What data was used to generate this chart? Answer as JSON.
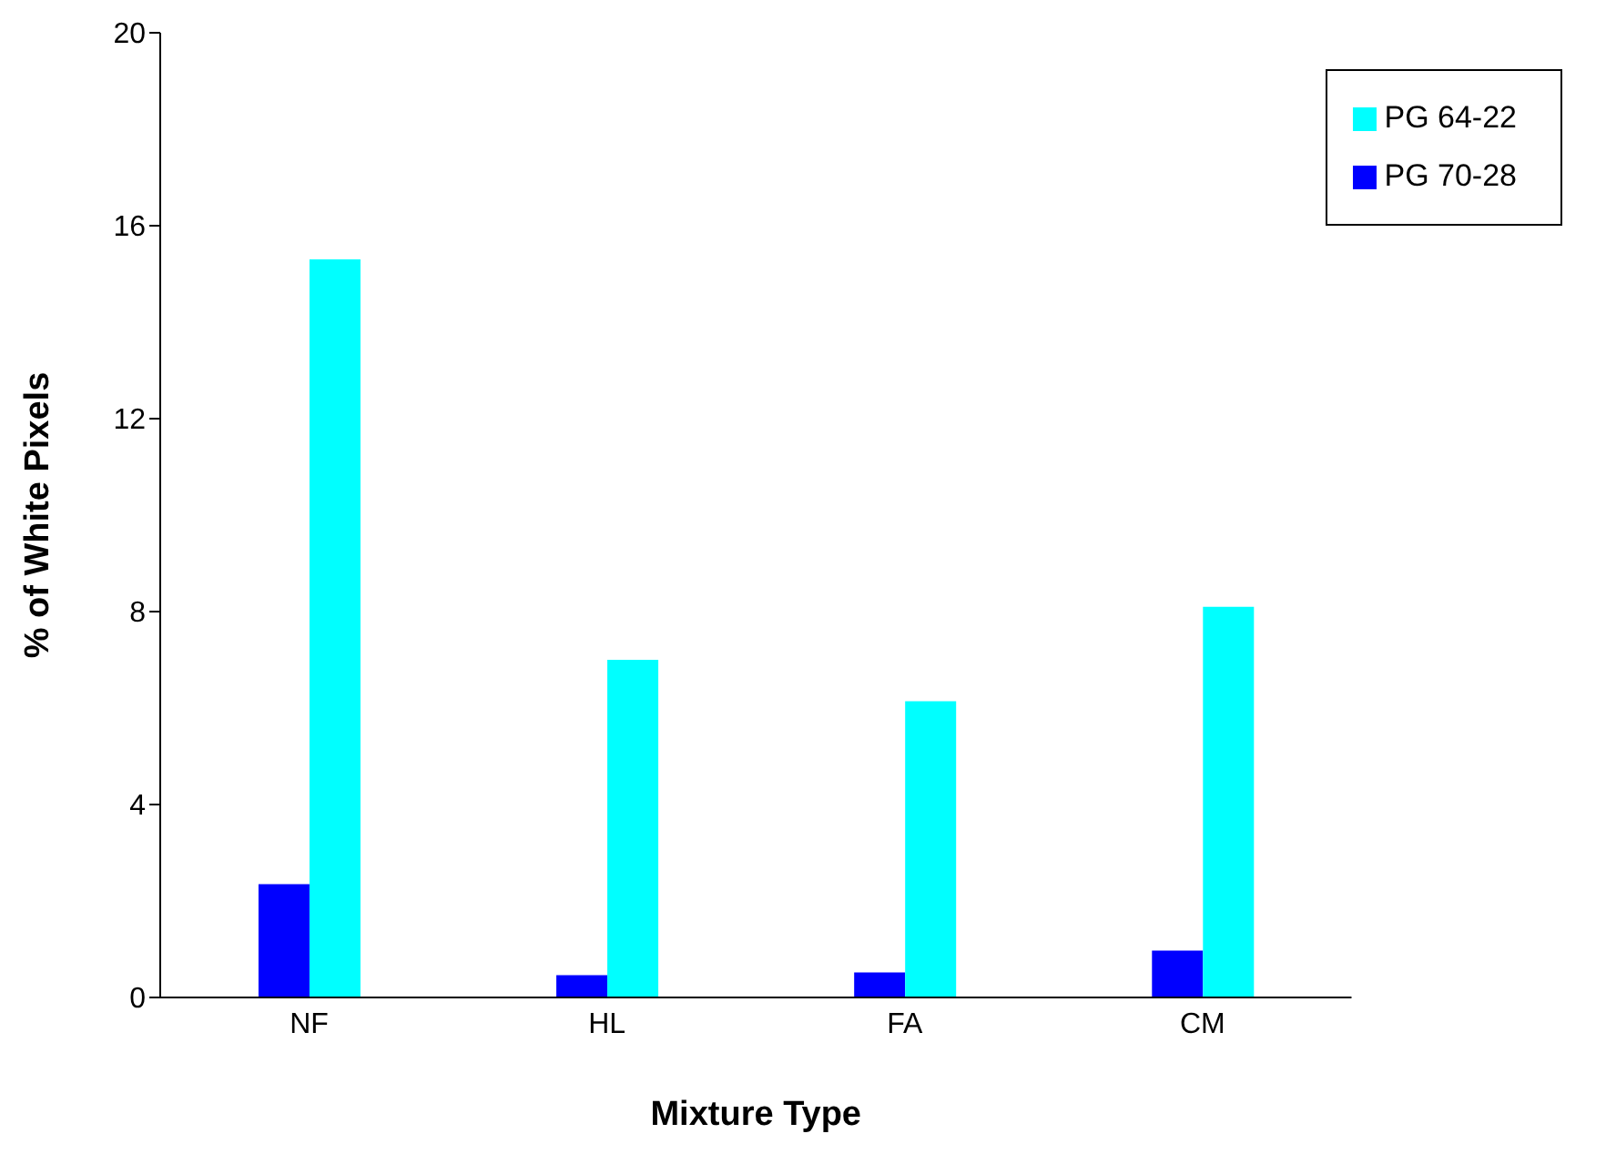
{
  "chart_data": {
    "type": "bar",
    "xlabel": "Mixture Type",
    "ylabel": "% of White Pixels",
    "categories": [
      "NF",
      "HL",
      "FA",
      "CM"
    ],
    "series": [
      {
        "name": "PG 70-28",
        "color": "#0000ff",
        "values": [
          2.35,
          0.46,
          0.52,
          0.97
        ]
      },
      {
        "name": "PG 64-22",
        "color": "#00ffff",
        "values": [
          15.3,
          7.0,
          6.14,
          8.1
        ]
      }
    ],
    "ylim": [
      0,
      20
    ],
    "yticks": [
      0,
      4,
      8,
      12,
      16,
      20
    ],
    "grid": false,
    "legend": "top right"
  }
}
